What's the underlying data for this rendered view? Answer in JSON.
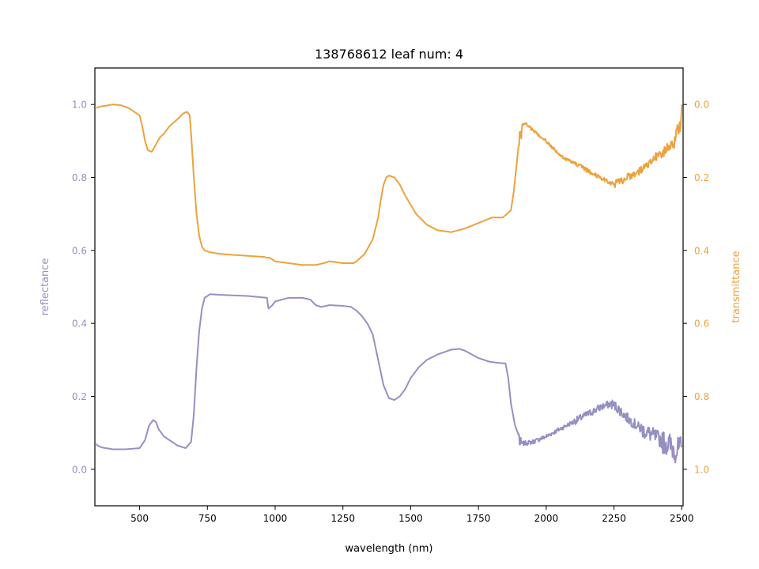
{
  "chart_data": {
    "type": "line",
    "title": "138768612 leaf num: 4",
    "xlabel": "wavelength (nm)",
    "xlim": [
      335,
      2505
    ],
    "xticks": [
      500,
      750,
      1000,
      1250,
      1500,
      1750,
      2000,
      2250,
      2500
    ],
    "grid": false,
    "y_left": {
      "label": "reflectance",
      "lim": [
        -0.1,
        1.1
      ],
      "ticks": [
        "0.0",
        "0.2",
        "0.4",
        "0.6",
        "0.8",
        "1.0"
      ],
      "color": "#9490c2"
    },
    "y_right": {
      "label": "transmittance",
      "lim": [
        1.1,
        -0.1
      ],
      "inverted": true,
      "ticks": [
        "0.0",
        "0.2",
        "0.4",
        "0.6",
        "0.8",
        "1.0"
      ],
      "color": "#eda23e"
    },
    "series": [
      {
        "axis": "left",
        "color": "#9490c2",
        "x": [
          340,
          345,
          360,
          400,
          450,
          500,
          520,
          535,
          550,
          560,
          570,
          590,
          610,
          640,
          670,
          690,
          700,
          710,
          720,
          730,
          740,
          760,
          800,
          900,
          970,
          975,
          990,
          1000,
          1010,
          1050,
          1100,
          1130,
          1150,
          1170,
          1200,
          1250,
          1280,
          1300,
          1320,
          1340,
          1360,
          1380,
          1400,
          1420,
          1440,
          1460,
          1480,
          1500,
          1530,
          1560,
          1600,
          1650,
          1680,
          1700,
          1750,
          1790,
          1820,
          1850,
          1860,
          1870,
          1885,
          1900,
          1905,
          1910,
          1950,
          2000,
          2050,
          2100,
          2150,
          2200,
          2240,
          2260,
          2300,
          2350,
          2400,
          2450,
          2480,
          2500
        ],
        "y": [
          0.07,
          0.065,
          0.06,
          0.055,
          0.055,
          0.058,
          0.08,
          0.12,
          0.135,
          0.13,
          0.11,
          0.09,
          0.08,
          0.065,
          0.058,
          0.075,
          0.15,
          0.28,
          0.38,
          0.44,
          0.47,
          0.48,
          0.478,
          0.475,
          0.47,
          0.44,
          0.45,
          0.46,
          0.462,
          0.47,
          0.47,
          0.465,
          0.45,
          0.445,
          0.45,
          0.448,
          0.445,
          0.435,
          0.42,
          0.4,
          0.37,
          0.3,
          0.23,
          0.195,
          0.19,
          0.2,
          0.22,
          0.25,
          0.28,
          0.3,
          0.315,
          0.328,
          0.33,
          0.325,
          0.305,
          0.295,
          0.292,
          0.29,
          0.25,
          0.18,
          0.12,
          0.09,
          0.06,
          0.07,
          0.075,
          0.09,
          0.11,
          0.13,
          0.15,
          0.17,
          0.18,
          0.17,
          0.14,
          0.11,
          0.09,
          0.07,
          0.05,
          0.06
        ],
        "noise": [
          [
            1900,
            1912,
            0.025,
            11
          ],
          [
            1912,
            2100,
            0.006,
            2
          ],
          [
            2100,
            2240,
            0.01,
            3
          ],
          [
            2240,
            2350,
            0.014,
            2
          ],
          [
            2350,
            2430,
            0.022,
            2
          ],
          [
            2430,
            2500,
            0.035,
            2
          ]
        ]
      },
      {
        "axis": "right",
        "color": "#eda23e",
        "x": [
          340,
          345,
          360,
          380,
          400,
          430,
          460,
          480,
          500,
          510,
          520,
          530,
          545,
          560,
          575,
          590,
          610,
          640,
          660,
          675,
          685,
          690,
          700,
          710,
          720,
          730,
          740,
          760,
          800,
          900,
          960,
          970,
          980,
          990,
          1000,
          1050,
          1100,
          1150,
          1180,
          1200,
          1250,
          1290,
          1300,
          1330,
          1360,
          1380,
          1390,
          1400,
          1410,
          1420,
          1440,
          1460,
          1480,
          1520,
          1560,
          1600,
          1650,
          1700,
          1750,
          1800,
          1840,
          1870,
          1880,
          1890,
          1900,
          1905,
          1910,
          1920,
          1950,
          2000,
          2050,
          2100,
          2150,
          2200,
          2250,
          2300,
          2350,
          2400,
          2450,
          2480,
          2495,
          2500
        ],
        "y": [
          0.01,
          0.008,
          0.005,
          0.003,
          0.0,
          0.002,
          0.01,
          0.02,
          0.03,
          0.06,
          0.1,
          0.125,
          0.13,
          0.11,
          0.09,
          0.08,
          0.06,
          0.04,
          0.025,
          0.02,
          0.03,
          0.08,
          0.2,
          0.3,
          0.36,
          0.39,
          0.4,
          0.405,
          0.41,
          0.415,
          0.418,
          0.42,
          0.42,
          0.425,
          0.43,
          0.435,
          0.44,
          0.44,
          0.435,
          0.43,
          0.435,
          0.435,
          0.43,
          0.41,
          0.37,
          0.31,
          0.26,
          0.22,
          0.2,
          0.195,
          0.2,
          0.22,
          0.25,
          0.3,
          0.33,
          0.345,
          0.35,
          0.34,
          0.325,
          0.31,
          0.31,
          0.29,
          0.24,
          0.17,
          0.1,
          0.09,
          0.06,
          0.05,
          0.07,
          0.1,
          0.14,
          0.16,
          0.18,
          0.2,
          0.22,
          0.2,
          0.18,
          0.15,
          0.12,
          0.09,
          0.05,
          0.0
        ],
        "noise": [
          [
            1900,
            1912,
            0.025,
            11
          ],
          [
            1912,
            2100,
            0.004,
            2
          ],
          [
            2100,
            2250,
            0.006,
            3
          ],
          [
            2250,
            2400,
            0.01,
            2
          ],
          [
            2400,
            2470,
            0.015,
            2
          ],
          [
            2470,
            2500,
            0.025,
            2
          ]
        ]
      }
    ]
  }
}
